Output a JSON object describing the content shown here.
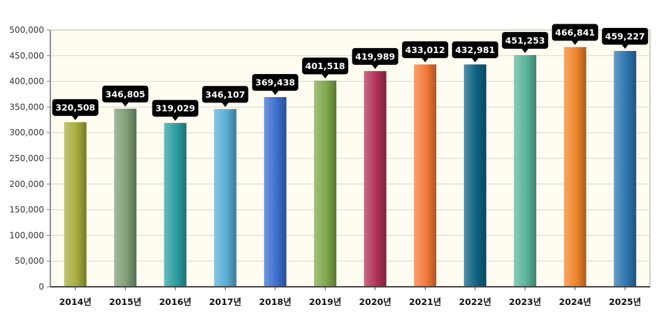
{
  "chart_data": {
    "type": "bar",
    "title": "",
    "xlabel": "",
    "ylabel": "",
    "ylim": [
      0,
      500000
    ],
    "yticks": [
      0,
      50000,
      100000,
      150000,
      200000,
      250000,
      300000,
      350000,
      400000,
      450000,
      500000
    ],
    "ytick_labels": [
      "0",
      "50,000",
      "100,000",
      "150,000",
      "200,000",
      "250,000",
      "300,000",
      "350,000",
      "400,000",
      "450,000",
      "500,000"
    ],
    "grid": true,
    "legend": "none",
    "categories": [
      "2014년",
      "2015년",
      "2016년",
      "2017년",
      "2018년",
      "2019년",
      "2020년",
      "2021년",
      "2022년",
      "2023년",
      "2024년",
      "2025년"
    ],
    "values": [
      320508,
      346805,
      319029,
      346107,
      369438,
      401518,
      419989,
      433012,
      432981,
      451253,
      466841,
      459227
    ],
    "value_labels": [
      "320,508",
      "346,805",
      "319,029",
      "346,107",
      "369,438",
      "401,518",
      "419,989",
      "433,012",
      "432,981",
      "451,253",
      "466,841",
      "459,227"
    ],
    "bar_colors": [
      "#a7ad3e",
      "#7f9e77",
      "#2e9ea2",
      "#5aaed6",
      "#3d70d0",
      "#7fa84c",
      "#b23258",
      "#f57a38",
      "#0f6383",
      "#5bb59b",
      "#f1852e",
      "#2e76b0"
    ],
    "plot_background": "#fffcf2",
    "gridline_color": "#d9d6c8",
    "axis_color": "#777777",
    "label_background": "#000000",
    "label_text_color": "#ffffff"
  }
}
